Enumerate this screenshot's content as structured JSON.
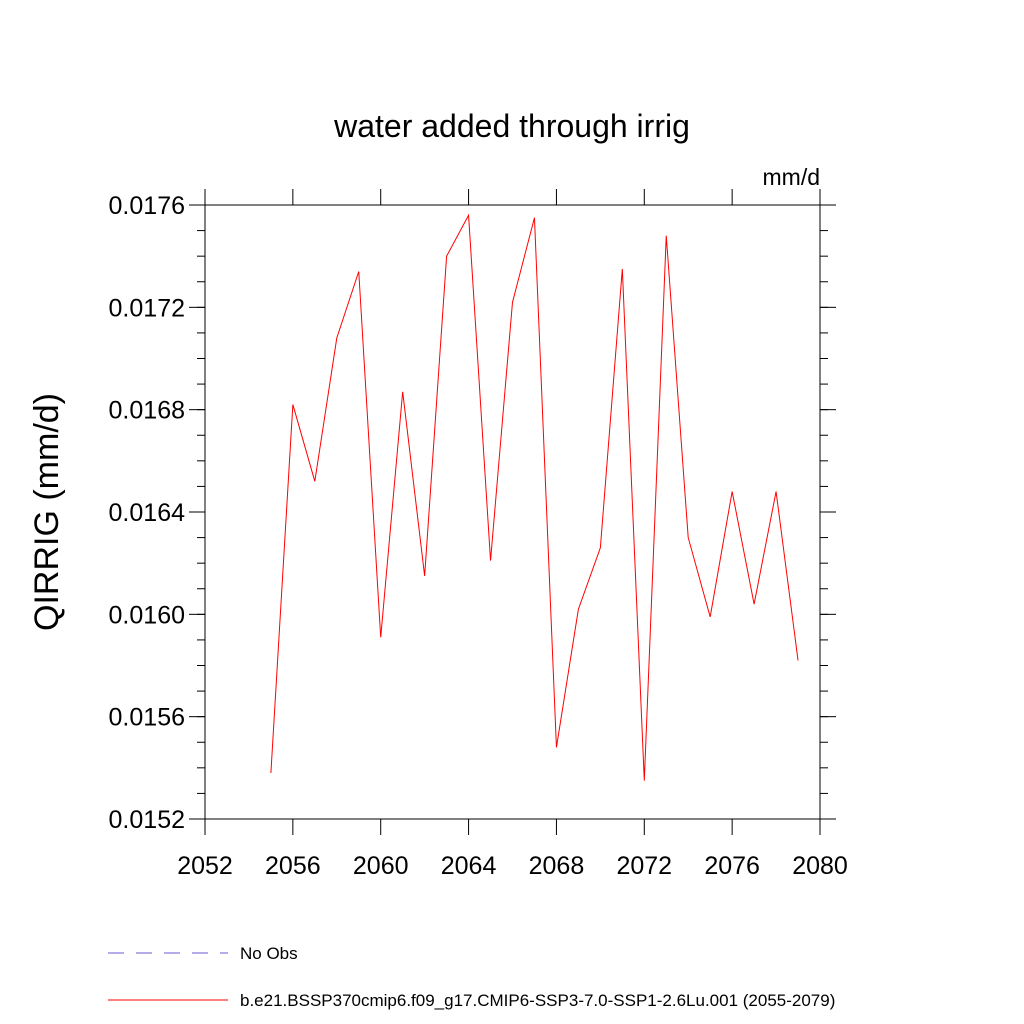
{
  "chart_data": {
    "type": "line",
    "title": "water added through irrig",
    "units_label": "mm/d",
    "ylabel": "QIRRIG  (mm/d)",
    "xlabel": "",
    "xlim": [
      2052,
      2080
    ],
    "ylim": [
      0.0152,
      0.0176
    ],
    "x_ticks": [
      "2052",
      "2056",
      "2060",
      "2064",
      "2068",
      "2072",
      "2076",
      "2080"
    ],
    "y_ticks": [
      "0.0152",
      "0.0156",
      "0.0160",
      "0.0164",
      "0.0168",
      "0.0172",
      "0.0176"
    ],
    "grid": false,
    "series": [
      {
        "name": "b.e21.BSSP370cmip6.f09_g17.CMIP6-SSP3-7.0-SSP1-2.6Lu.001 (2055-2079)",
        "color": "#ff0000",
        "x": [
          2055,
          2056,
          2057,
          2058,
          2059,
          2060,
          2061,
          2062,
          2063,
          2064,
          2065,
          2066,
          2067,
          2068,
          2069,
          2070,
          2071,
          2072,
          2073,
          2074,
          2075,
          2076,
          2077,
          2078,
          2079
        ],
        "y": [
          0.01538,
          0.01682,
          0.01652,
          0.01708,
          0.01734,
          0.01591,
          0.01687,
          0.01615,
          0.0174,
          0.01756,
          0.01621,
          0.01722,
          0.01755,
          0.01548,
          0.01602,
          0.01626,
          0.01735,
          0.01535,
          0.01748,
          0.0163,
          0.01599,
          0.01648,
          0.01604,
          0.01648,
          0.01582
        ]
      }
    ],
    "legend": [
      {
        "label": "No Obs",
        "color": "#6a5acd",
        "dashed": true
      },
      {
        "label": "b.e21.BSSP370cmip6.f09_g17.CMIP6-SSP3-7.0-SSP1-2.6Lu.001 (2055-2079)",
        "color": "#ff0000",
        "dashed": false
      }
    ],
    "legend_position": "bottom"
  }
}
